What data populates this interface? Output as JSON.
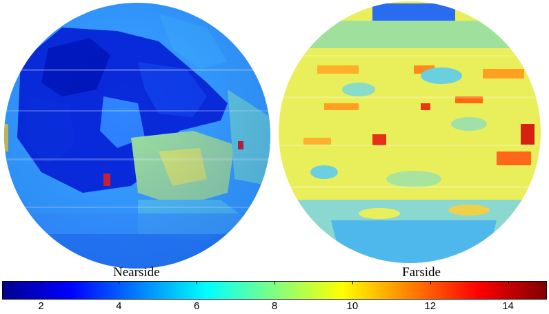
{
  "hemispheres": [
    {
      "label": "Nearside"
    },
    {
      "label": "Farside"
    }
  ],
  "colorbar": {
    "ticks": [
      "2",
      "4",
      "6",
      "8",
      "10",
      "12",
      "14"
    ],
    "min": 1,
    "max": 15,
    "colormap": "jet"
  }
}
